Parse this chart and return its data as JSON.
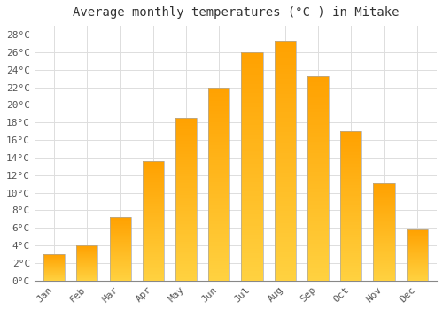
{
  "title": "Average monthly temperatures (°C ) in Mitake",
  "months": [
    "Jan",
    "Feb",
    "Mar",
    "Apr",
    "May",
    "Jun",
    "Jul",
    "Aug",
    "Sep",
    "Oct",
    "Nov",
    "Dec"
  ],
  "temperatures": [
    3.0,
    4.0,
    7.2,
    13.6,
    18.5,
    22.0,
    26.0,
    27.3,
    23.3,
    17.0,
    11.1,
    5.8
  ],
  "bar_color_bottom": "#FFD060",
  "bar_color_top": "#FFA000",
  "bar_edge_color": "#AAAAAA",
  "ylim": [
    0,
    29
  ],
  "yticks": [
    0,
    2,
    4,
    6,
    8,
    10,
    12,
    14,
    16,
    18,
    20,
    22,
    24,
    26,
    28
  ],
  "ytick_labels": [
    "0°C",
    "2°C",
    "4°C",
    "6°C",
    "8°C",
    "10°C",
    "12°C",
    "14°C",
    "16°C",
    "18°C",
    "20°C",
    "22°C",
    "24°C",
    "26°C",
    "28°C"
  ],
  "background_color": "#FFFFFF",
  "grid_color": "#DDDDDD",
  "title_fontsize": 10,
  "tick_fontsize": 8,
  "bar_width": 0.65
}
